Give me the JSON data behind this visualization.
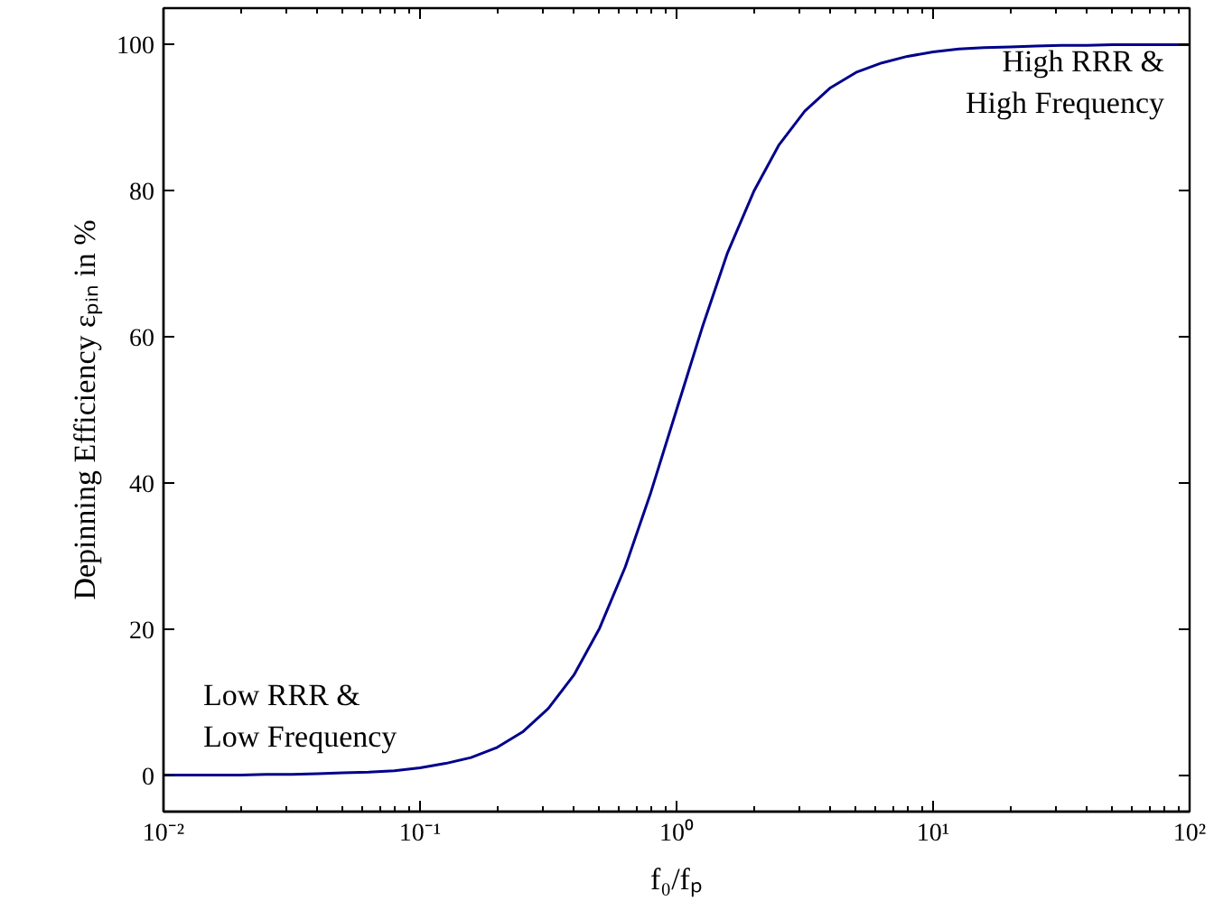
{
  "chart_data": {
    "type": "line",
    "xlabel": "f₀/fₚ",
    "ylabel": "Depinning Efficiency εₚᵢₙ in %",
    "x": [
      0.01,
      0.0126,
      0.0158,
      0.02,
      0.0251,
      0.0316,
      0.0398,
      0.0501,
      0.0631,
      0.0794,
      0.1,
      0.126,
      0.158,
      0.2,
      0.251,
      0.316,
      0.398,
      0.501,
      0.631,
      0.794,
      1,
      1.26,
      1.58,
      2,
      2.51,
      3.16,
      3.98,
      5.01,
      6.31,
      7.94,
      10,
      12.6,
      15.8,
      20,
      25.1,
      31.6,
      39.8,
      50.1,
      63.1,
      79.4,
      100
    ],
    "series": [
      {
        "color": "#00008b",
        "values": [
          0,
          0,
          0,
          0,
          0.1,
          0.1,
          0.2,
          0.3,
          0.4,
          0.6,
          1,
          1.6,
          2.4,
          3.8,
          5.9,
          9.1,
          13.7,
          20.1,
          28.5,
          38.7,
          50,
          61.3,
          71.5,
          79.9,
          86.3,
          90.9,
          94.1,
          96.2,
          97.5,
          98.4,
          99,
          99.4,
          99.6,
          99.7,
          99.8,
          99.9,
          99.9,
          100,
          100,
          100,
          100
        ]
      }
    ],
    "log": "x",
    "grid": false,
    "line_style": "solid",
    "xlim": [
      0.01,
      100
    ],
    "ylim": [
      -5,
      105
    ],
    "xticks": [
      {
        "value": 0.01,
        "label": "10⁻²"
      },
      {
        "value": 0.1,
        "label": "10⁻¹"
      },
      {
        "value": 1,
        "label": "10⁰"
      },
      {
        "value": 10,
        "label": "10¹"
      },
      {
        "value": 100,
        "label": "10²"
      }
    ],
    "yticks": [
      0,
      20,
      40,
      60,
      80,
      100
    ],
    "annotations": [
      "Low RRR &\nLow Frequency",
      "High RRR &\nHigh Frequency"
    ]
  }
}
